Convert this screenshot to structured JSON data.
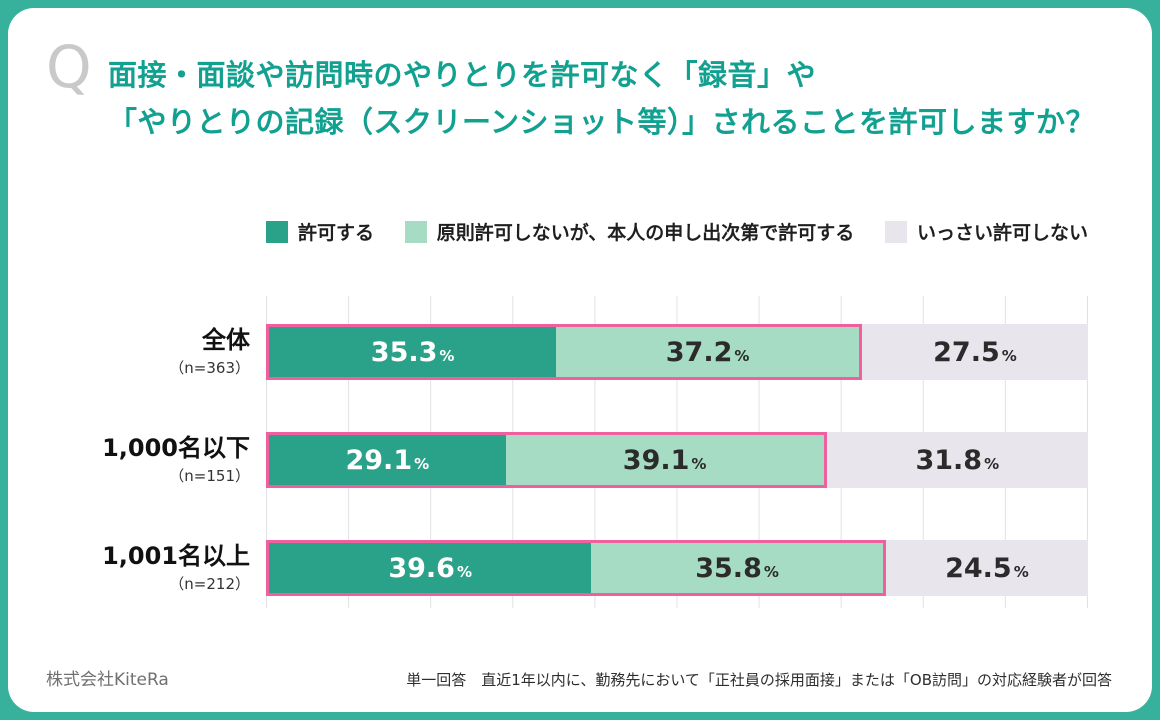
{
  "frame": {
    "border_color": "#38b19c"
  },
  "question": {
    "icon": "Q",
    "lines": [
      "面接・面談や訪問時のやりとりを許可なく「録音」や",
      "「やりとりの記録（スクリーンショット等）」されることを許可しますか？"
    ]
  },
  "chart_data": {
    "type": "bar",
    "orientation": "horizontal",
    "stacked": true,
    "x_range": [
      0,
      100
    ],
    "grid": true,
    "grid_step_percent": 10,
    "categories": [
      {
        "label": "全体",
        "n": "（n=363）"
      },
      {
        "label": "1,000名以下",
        "n": "（n=151）"
      },
      {
        "label": "1,001名以上",
        "n": "（n=212）"
      }
    ],
    "series": [
      {
        "name": "許可する",
        "color": "#2aa189",
        "text_color": "#ffffff",
        "values": [
          35.3,
          29.1,
          39.6
        ]
      },
      {
        "name": "原則許可しないが、本人の申し出次第で許可する",
        "color": "#a5dcc3",
        "text_color": "#2b2b2b",
        "values": [
          37.2,
          39.1,
          35.8
        ]
      },
      {
        "name": "いっさい許可しない",
        "color": "#e8e6ec",
        "text_color": "#2b2b2b",
        "values": [
          27.5,
          31.8,
          24.5
        ]
      }
    ],
    "highlight_outline": {
      "color": "#f0609f",
      "applies_to_series": [
        0,
        1
      ]
    }
  },
  "footer": {
    "left": "株式会社KiteRa",
    "right": "単一回答　直近1年以内に、勤務先において「正社員の採用面接」または「OB訪問」の対応経験者が回答"
  }
}
